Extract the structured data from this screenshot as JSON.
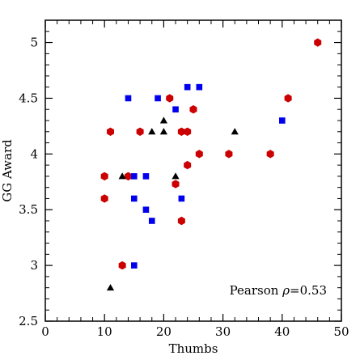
{
  "chart_data": {
    "type": "scatter",
    "xlabel": "Thumbs",
    "ylabel": "GG Award",
    "xlim": [
      0,
      50
    ],
    "ylim": [
      2.5,
      5.2
    ],
    "xticks": [
      0,
      10,
      20,
      30,
      40,
      50
    ],
    "yticks": [
      2.5,
      3,
      3.5,
      4,
      4.5,
      5
    ],
    "xtick_labels": [
      "0",
      "10",
      "20",
      "30",
      "40",
      "50"
    ],
    "ytick_labels": [
      "2.5",
      "3",
      "3.5",
      "4",
      "4.5",
      "5"
    ],
    "grid": false,
    "annotation": {
      "prefix": "Pearson ",
      "symbol": "ρ",
      "suffix": "=0.53"
    },
    "series": [
      {
        "marker": "hexagon",
        "color": "#cc0000",
        "points": [
          [
            46,
            5.0
          ],
          [
            41,
            4.5
          ],
          [
            21,
            4.5
          ],
          [
            25,
            4.4
          ],
          [
            11,
            4.2
          ],
          [
            16,
            4.2
          ],
          [
            23,
            4.2
          ],
          [
            24,
            4.2
          ],
          [
            26,
            4.0
          ],
          [
            31,
            4.0
          ],
          [
            38,
            4.0
          ],
          [
            24,
            3.9
          ],
          [
            10,
            3.8
          ],
          [
            14,
            3.8
          ],
          [
            22,
            3.73
          ],
          [
            10,
            3.6
          ],
          [
            23,
            3.4
          ],
          [
            13,
            3.0
          ]
        ]
      },
      {
        "marker": "square",
        "color": "#0000ee",
        "points": [
          [
            24,
            4.6
          ],
          [
            26,
            4.6
          ],
          [
            14,
            4.5
          ],
          [
            19,
            4.5
          ],
          [
            22,
            4.4
          ],
          [
            40,
            4.3
          ],
          [
            15,
            3.8
          ],
          [
            17,
            3.8
          ],
          [
            15,
            3.6
          ],
          [
            23,
            3.6
          ],
          [
            17,
            3.5
          ],
          [
            18,
            3.4
          ],
          [
            15,
            3.0
          ]
        ]
      },
      {
        "marker": "triangle",
        "color": "#000000",
        "points": [
          [
            20,
            4.3
          ],
          [
            18,
            4.2
          ],
          [
            20,
            4.2
          ],
          [
            32,
            4.2
          ],
          [
            13,
            3.8
          ],
          [
            22,
            3.8
          ],
          [
            11,
            2.8
          ]
        ]
      }
    ]
  }
}
